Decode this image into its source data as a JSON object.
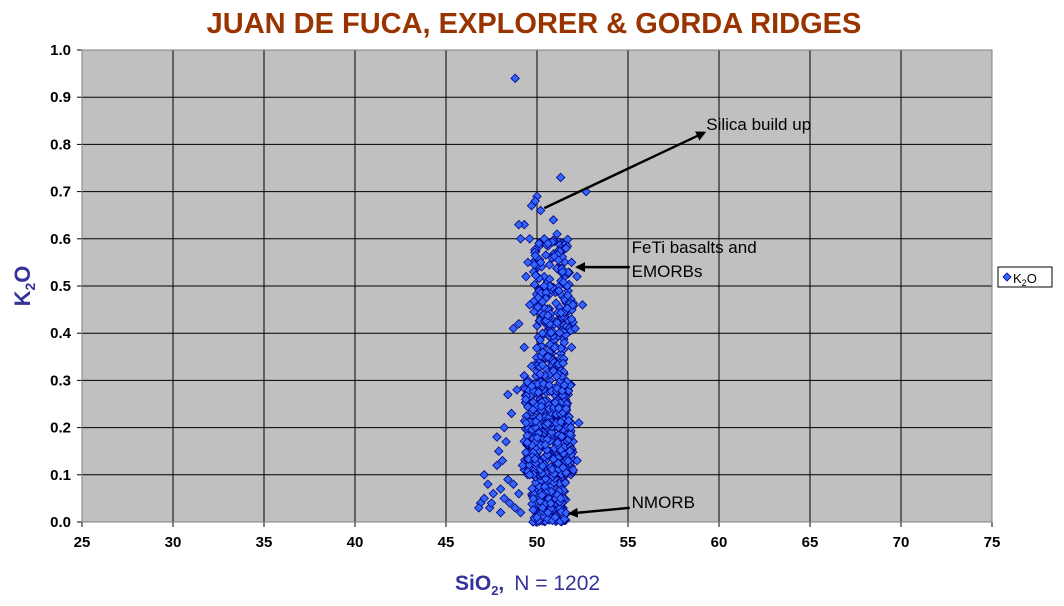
{
  "chart_data": {
    "type": "scatter",
    "title": "JUAN DE FUCA, EXPLORER & GORDA RIDGES",
    "xlabel": "SiO",
    "xlabel_sub": "2",
    "xlabel_suffix": ",",
    "xlabel_note": "N = 1202",
    "ylabel": "K",
    "ylabel_sub": "2",
    "ylabel_suffix": "O",
    "xlim": [
      25,
      75
    ],
    "ylim": [
      0.0,
      1.0
    ],
    "x_ticks": [
      25,
      30,
      35,
      40,
      45,
      50,
      55,
      60,
      65,
      70,
      75
    ],
    "y_ticks": [
      "0.0",
      "0.1",
      "0.2",
      "0.3",
      "0.4",
      "0.5",
      "0.6",
      "0.7",
      "0.8",
      "0.9",
      "1.0"
    ],
    "grid": true,
    "legend_position": "right",
    "colors": {
      "title": "#993300",
      "axis_label": "#333399",
      "plot_bg": "#c0c0c0",
      "marker_fill": "#3366ff",
      "marker_stroke": "#000080"
    },
    "series": [
      {
        "name": "K2O",
        "legend_text": "K",
        "legend_sub": "2",
        "legend_suffix": "O",
        "points": [
          [
            48.8,
            0.94
          ],
          [
            51.3,
            0.73
          ],
          [
            52.7,
            0.7
          ],
          [
            50.0,
            0.69
          ],
          [
            49.9,
            0.68
          ],
          [
            49.7,
            0.67
          ],
          [
            50.2,
            0.66
          ],
          [
            49.3,
            0.63
          ],
          [
            49.0,
            0.63
          ],
          [
            50.9,
            0.64
          ],
          [
            49.6,
            0.6
          ],
          [
            50.4,
            0.6
          ],
          [
            51.1,
            0.61
          ],
          [
            49.1,
            0.6
          ],
          [
            50.6,
            0.59
          ],
          [
            51.6,
            0.58
          ],
          [
            51.9,
            0.55
          ],
          [
            52.2,
            0.52
          ],
          [
            51.4,
            0.53
          ],
          [
            49.5,
            0.55
          ],
          [
            49.4,
            0.52
          ],
          [
            50.2,
            0.55
          ],
          [
            50.7,
            0.5
          ],
          [
            51.2,
            0.49
          ],
          [
            52.5,
            0.46
          ],
          [
            51.9,
            0.43
          ],
          [
            52.1,
            0.41
          ],
          [
            49.0,
            0.42
          ],
          [
            48.7,
            0.41
          ],
          [
            49.6,
            0.46
          ],
          [
            50.3,
            0.4
          ],
          [
            51.5,
            0.38
          ],
          [
            51.9,
            0.37
          ],
          [
            49.3,
            0.37
          ],
          [
            50.6,
            0.35
          ],
          [
            50.9,
            0.32
          ],
          [
            49.7,
            0.33
          ],
          [
            49.3,
            0.31
          ],
          [
            48.9,
            0.28
          ],
          [
            48.4,
            0.27
          ],
          [
            48.6,
            0.23
          ],
          [
            48.2,
            0.2
          ],
          [
            47.8,
            0.18
          ],
          [
            48.3,
            0.17
          ],
          [
            47.9,
            0.15
          ],
          [
            47.8,
            0.12
          ],
          [
            48.1,
            0.13
          ],
          [
            47.1,
            0.1
          ],
          [
            47.3,
            0.08
          ],
          [
            47.1,
            0.05
          ],
          [
            46.9,
            0.04
          ],
          [
            46.8,
            0.03
          ],
          [
            47.4,
            0.03
          ],
          [
            47.6,
            0.06
          ],
          [
            48.0,
            0.07
          ],
          [
            48.2,
            0.05
          ],
          [
            48.5,
            0.04
          ],
          [
            48.8,
            0.03
          ],
          [
            49.1,
            0.02
          ],
          [
            48.0,
            0.02
          ],
          [
            47.5,
            0.04
          ],
          [
            48.4,
            0.09
          ],
          [
            48.7,
            0.08
          ],
          [
            49.0,
            0.06
          ],
          [
            52.3,
            0.21
          ],
          [
            52.2,
            0.13
          ],
          [
            52.0,
            0.11
          ],
          [
            51.8,
            0.15
          ],
          [
            51.6,
            0.24
          ],
          [
            51.5,
            0.29
          ],
          [
            49.4,
            0.21
          ],
          [
            49.2,
            0.12
          ],
          [
            49.6,
            0.1
          ],
          [
            50.6,
            0.02
          ],
          [
            50.0,
            0.01
          ],
          [
            50.3,
            0.03
          ],
          [
            51.3,
            0.05
          ],
          [
            51.0,
            0.01
          ],
          [
            50.4,
            0.5
          ],
          [
            51.7,
            0.48
          ]
        ]
      }
    ],
    "cluster_seed": 20240501,
    "annotations": [
      {
        "text": "Silica build up",
        "x": 59.3,
        "y": 0.83,
        "arrow_from": [
          50.4,
          0.665
        ],
        "arrow_to": [
          59.2,
          0.825
        ]
      },
      {
        "text": "FeTi basalts and",
        "text2": "EMORBs",
        "x": 55.2,
        "y": 0.57,
        "arrow_from": [
          55.1,
          0.54
        ],
        "arrow_to": [
          52.2,
          0.54
        ]
      },
      {
        "text": "NMORB",
        "x": 55.2,
        "y": 0.03,
        "arrow_from": [
          55.1,
          0.03
        ],
        "arrow_to": [
          51.8,
          0.018
        ]
      }
    ]
  }
}
